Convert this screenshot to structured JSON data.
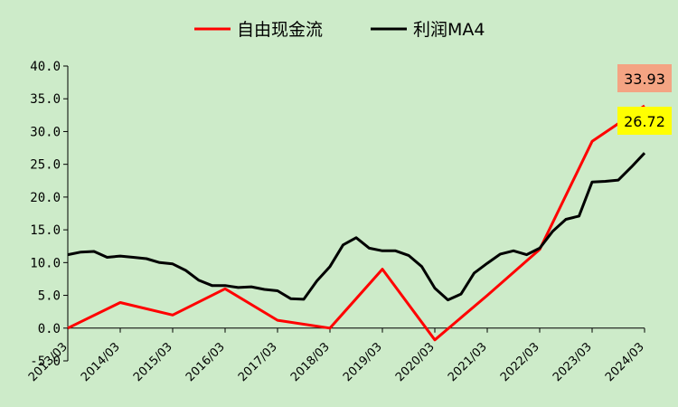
{
  "chart_data": {
    "type": "line",
    "categories": [
      "2013/03",
      "2014/03",
      "2015/03",
      "2016/03",
      "2017/03",
      "2018/03",
      "2019/03",
      "2020/03",
      "2021/03",
      "2022/03",
      "2023/03",
      "2024/03"
    ],
    "ylim": [
      -5,
      40
    ],
    "yticks": [
      "-5.0",
      "0.0",
      "5.0",
      "10.0",
      "15.0",
      "20.0",
      "25.0",
      "30.0",
      "35.0",
      "40.0"
    ],
    "series": [
      {
        "name": "自由现金流",
        "color": "#ff0000",
        "x": [
          0,
          1,
          2,
          3,
          4,
          5,
          6,
          7,
          8,
          9,
          10,
          11
        ],
        "values": [
          0.0,
          3.9,
          2.0,
          6.0,
          1.2,
          0.0,
          9.0,
          -1.8,
          5.0,
          12.0,
          28.5,
          33.93
        ]
      },
      {
        "name": "利润MA4",
        "color": "#000000",
        "x": [
          0,
          0.25,
          0.5,
          0.75,
          1,
          1.25,
          1.5,
          1.75,
          2,
          2.25,
          2.5,
          2.75,
          3,
          3.25,
          3.5,
          3.75,
          4,
          4.25,
          4.5,
          4.75,
          5,
          5.25,
          5.5,
          5.75,
          6,
          6.25,
          6.5,
          6.75,
          7,
          7.25,
          7.5,
          7.75,
          8,
          8.25,
          8.5,
          8.75,
          9,
          9.25,
          9.5,
          9.75,
          10,
          10.25,
          10.5,
          10.75,
          11
        ],
        "values": [
          11.2,
          11.6,
          11.7,
          10.8,
          11.0,
          10.8,
          10.6,
          10.0,
          9.8,
          8.8,
          7.3,
          6.5,
          6.5,
          6.2,
          6.3,
          5.9,
          5.7,
          4.5,
          4.4,
          7.2,
          9.4,
          12.7,
          13.8,
          12.2,
          11.8,
          11.8,
          11.1,
          9.4,
          6.1,
          4.3,
          5.2,
          8.4,
          9.9,
          11.3,
          11.8,
          11.2,
          12.2,
          14.8,
          16.6,
          17.1,
          22.3,
          22.4,
          22.6,
          24.6,
          26.72
        ]
      }
    ],
    "annotations": [
      {
        "text": "33.93",
        "background": "#f4a483"
      },
      {
        "text": "26.72",
        "background": "#ffff00"
      }
    ]
  }
}
